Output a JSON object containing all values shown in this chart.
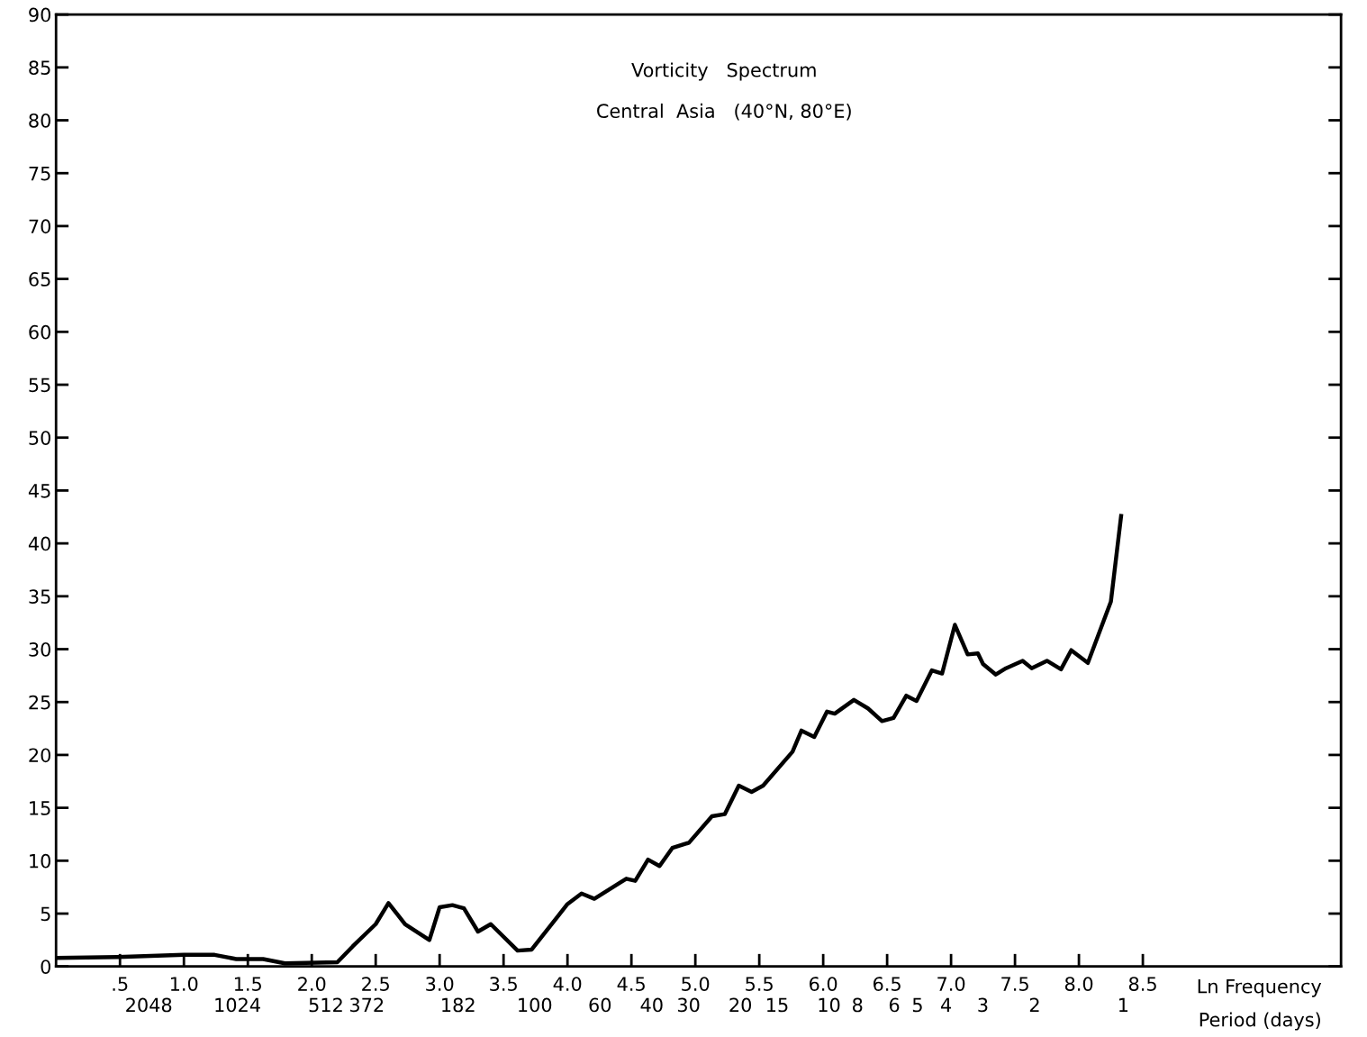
{
  "chart_data": {
    "type": "line",
    "title": "Vorticity   Spectrum",
    "subtitle": "Central  Asia   (40°N, 80°E)",
    "xlabel": "Ln Frequency",
    "x2label": "Period (days)",
    "xlim": [
      0,
      10.05
    ],
    "ylim": [
      0,
      90
    ],
    "xticks": [
      {
        "value": 0.5,
        "label": ".5"
      },
      {
        "value": 1.0,
        "label": "1.0"
      },
      {
        "value": 1.5,
        "label": "1.5"
      },
      {
        "value": 2.0,
        "label": "2.0"
      },
      {
        "value": 2.5,
        "label": "2.5"
      },
      {
        "value": 3.0,
        "label": "3.0"
      },
      {
        "value": 3.5,
        "label": "3.5"
      },
      {
        "value": 4.0,
        "label": "4.0"
      },
      {
        "value": 4.5,
        "label": "4.5"
      },
      {
        "value": 5.0,
        "label": "5.0"
      },
      {
        "value": 5.5,
        "label": "5.5"
      },
      {
        "value": 6.0,
        "label": "6.0"
      },
      {
        "value": 6.5,
        "label": "6.5"
      },
      {
        "value": 7.0,
        "label": "7.0"
      },
      {
        "value": 7.5,
        "label": "7.5"
      },
      {
        "value": 8.0,
        "label": "8.0"
      },
      {
        "value": 8.5,
        "label": "8.5"
      }
    ],
    "x2lim": [
      4230,
      0.182
    ],
    "log": "x2",
    "x2ticks": [
      2048,
      1024,
      512,
      372,
      182,
      100,
      60,
      40,
      30,
      20,
      15,
      10,
      8,
      6,
      5,
      4,
      3,
      2,
      1
    ],
    "yticks": [
      0,
      5,
      10,
      15,
      20,
      25,
      30,
      35,
      40,
      45,
      50,
      55,
      60,
      65,
      70,
      75,
      80,
      85,
      90
    ],
    "grid": false,
    "legend": false,
    "marker": "none",
    "line_style": "solid",
    "x": [
      0,
      0.48,
      1.0,
      1.24,
      1.41,
      1.62,
      1.79,
      2.2,
      2.32,
      2.5,
      2.6,
      2.73,
      2.92,
      3.0,
      3.1,
      3.19,
      3.3,
      3.4,
      3.61,
      3.72,
      4.0,
      4.11,
      4.21,
      4.42,
      4.46,
      4.53,
      4.63,
      4.72,
      4.82,
      4.95,
      5.13,
      5.23,
      5.34,
      5.44,
      5.53,
      5.76,
      5.83,
      5.93,
      6.03,
      6.09,
      6.24,
      6.35,
      6.46,
      6.55,
      6.65,
      6.73,
      6.85,
      6.93,
      7.03,
      7.13,
      7.21,
      7.25,
      7.35,
      7.43,
      7.56,
      7.63,
      7.75,
      7.86,
      7.94,
      8.07,
      8.25,
      8.33
    ],
    "series": [
      {
        "color": "#000000",
        "values": [
          0.8,
          0.9,
          1.1,
          1.1,
          0.7,
          0.7,
          0.3,
          0.4,
          1.9,
          4.0,
          6.0,
          4.0,
          2.5,
          5.6,
          5.8,
          5.5,
          3.3,
          4.0,
          1.5,
          1.6,
          5.9,
          6.9,
          6.4,
          8.0,
          8.3,
          8.1,
          10.1,
          9.5,
          11.2,
          11.7,
          14.2,
          14.4,
          17.1,
          16.5,
          17.1,
          20.3,
          22.3,
          21.7,
          24.1,
          23.9,
          25.2,
          24.4,
          23.2,
          23.5,
          25.6,
          25.1,
          28.0,
          27.7,
          32.3,
          29.5,
          29.6,
          28.6,
          27.6,
          28.2,
          28.9,
          28.2,
          28.9,
          28.1,
          29.9,
          28.7,
          34.5,
          42.6
        ]
      }
    ]
  }
}
